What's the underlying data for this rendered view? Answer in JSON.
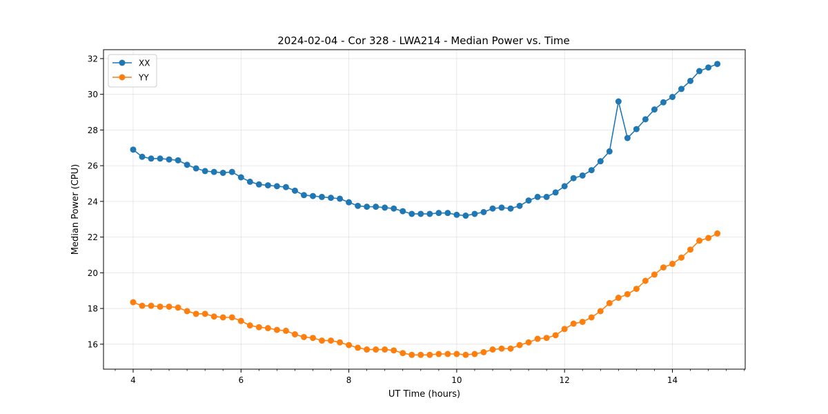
{
  "chart_data": {
    "type": "line",
    "title": "2024-02-04 - Cor 328 - LWA214 - Median Power vs. Time",
    "xlabel": "UT Time (hours)",
    "ylabel": "Median Power (CPU)",
    "xlim": [
      3.45,
      15.35
    ],
    "ylim": [
      14.6,
      32.5
    ],
    "xticks": [
      4,
      6,
      8,
      10,
      12,
      14
    ],
    "xtick_labels": [
      "4",
      "6",
      "8",
      "10",
      "12",
      "14"
    ],
    "yticks": [
      16,
      18,
      20,
      22,
      24,
      26,
      28,
      30,
      32
    ],
    "ytick_labels": [
      "16",
      "18",
      "20",
      "22",
      "24",
      "26",
      "28",
      "30",
      "32"
    ],
    "grid": true,
    "legend_position": "top-left",
    "x": [
      4.0,
      4.1667,
      4.3333,
      4.5,
      4.6667,
      4.8333,
      5.0,
      5.1667,
      5.3333,
      5.5,
      5.6667,
      5.8333,
      6.0,
      6.1667,
      6.3333,
      6.5,
      6.6667,
      6.8333,
      7.0,
      7.1667,
      7.3333,
      7.5,
      7.6667,
      7.8333,
      8.0,
      8.1667,
      8.3333,
      8.5,
      8.6667,
      8.8333,
      9.0,
      9.1667,
      9.3333,
      9.5,
      9.6667,
      9.8333,
      10.0,
      10.1667,
      10.3333,
      10.5,
      10.6667,
      10.8333,
      11.0,
      11.1667,
      11.3333,
      11.5,
      11.6667,
      11.8333,
      12.0,
      12.1667,
      12.3333,
      12.5,
      12.6667,
      12.8333,
      13.0,
      13.1667,
      13.3333,
      13.5,
      13.6667,
      13.8333,
      14.0,
      14.1667,
      14.3333,
      14.5,
      14.6667,
      14.8333
    ],
    "series": [
      {
        "name": "XX",
        "color": "#1f77b4",
        "values": [
          26.9,
          26.5,
          26.4,
          26.4,
          26.35,
          26.3,
          26.05,
          25.85,
          25.7,
          25.65,
          25.6,
          25.65,
          25.35,
          25.1,
          24.95,
          24.9,
          24.85,
          24.8,
          24.6,
          24.35,
          24.3,
          24.25,
          24.2,
          24.15,
          23.95,
          23.75,
          23.7,
          23.7,
          23.65,
          23.6,
          23.45,
          23.3,
          23.3,
          23.3,
          23.35,
          23.35,
          23.25,
          23.2,
          23.3,
          23.4,
          23.6,
          23.65,
          23.6,
          23.75,
          24.05,
          24.25,
          24.25,
          24.5,
          24.85,
          25.3,
          25.45,
          25.75,
          26.25,
          26.8,
          29.6,
          27.55,
          28.05,
          28.6,
          29.15,
          29.55,
          29.85,
          30.3,
          30.75,
          31.3,
          31.5,
          31.7
        ]
      },
      {
        "name": "YY",
        "color": "#ff7f0e",
        "values": [
          18.35,
          18.15,
          18.15,
          18.1,
          18.1,
          18.05,
          17.85,
          17.7,
          17.7,
          17.55,
          17.5,
          17.5,
          17.3,
          17.05,
          16.95,
          16.9,
          16.8,
          16.75,
          16.55,
          16.4,
          16.35,
          16.2,
          16.2,
          16.1,
          15.95,
          15.8,
          15.7,
          15.7,
          15.7,
          15.65,
          15.5,
          15.4,
          15.4,
          15.4,
          15.45,
          15.45,
          15.45,
          15.4,
          15.45,
          15.55,
          15.7,
          15.75,
          15.75,
          15.95,
          16.1,
          16.3,
          16.35,
          16.5,
          16.85,
          17.15,
          17.25,
          17.5,
          17.85,
          18.3,
          18.6,
          18.8,
          19.1,
          19.55,
          19.9,
          20.3,
          20.5,
          20.85,
          21.3,
          21.8,
          21.95,
          22.2
        ]
      }
    ]
  }
}
